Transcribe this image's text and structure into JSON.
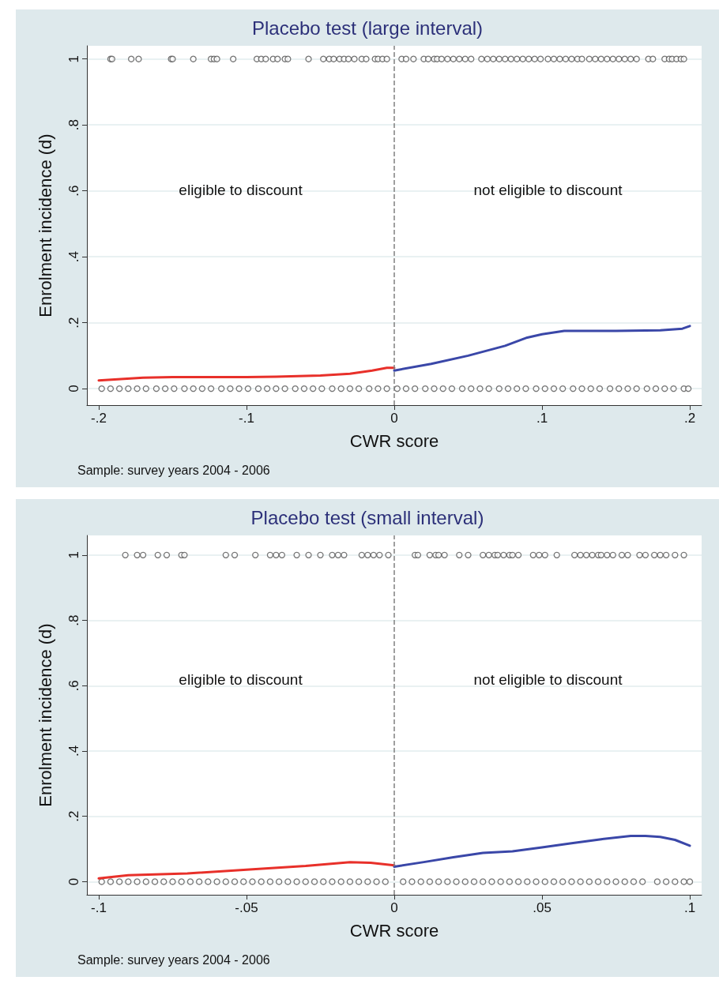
{
  "chart_data": [
    {
      "type": "scatter",
      "title": "Placebo test (large interval)",
      "xlabel": "CWR score",
      "ylabel": "Enrolment incidence (d)",
      "xlim": [
        -0.208,
        0.208
      ],
      "xticks": [
        {
          "value": -0.2,
          "label": "-.2"
        },
        {
          "value": -0.1,
          "label": "-.1"
        },
        {
          "value": 0,
          "label": "0"
        },
        {
          "value": 0.1,
          "label": ".1"
        },
        {
          "value": 0.2,
          "label": ".2"
        }
      ],
      "ylim": [
        -0.05,
        1.04
      ],
      "yticks": [
        {
          "value": 0,
          "label": "0"
        },
        {
          "value": 0.2,
          "label": ".2"
        },
        {
          "value": 0.4,
          "label": ".4"
        },
        {
          "value": 0.6,
          "label": ".6"
        },
        {
          "value": 0.8,
          "label": ".8"
        },
        {
          "value": 1,
          "label": "1"
        }
      ],
      "grid": "y",
      "ref_lines": [
        {
          "axis": "x",
          "value": 0,
          "color": "#808080",
          "line_style": "dashed"
        }
      ],
      "annotations": [
        "eligible to discount",
        "not eligible to discount",
        "Sample: survey years 2004 - 2006"
      ],
      "series": [
        {
          "type": "scatter",
          "marker": "circle",
          "color": "#555555",
          "x": [
            -0.192,
            -0.191,
            -0.178,
            -0.173,
            -0.151,
            -0.15,
            -0.136,
            -0.124,
            -0.122,
            -0.12,
            -0.109,
            -0.093,
            -0.09,
            -0.087,
            -0.082,
            -0.079,
            -0.074,
            -0.072,
            -0.058,
            -0.048,
            -0.044,
            -0.041,
            -0.037,
            -0.034,
            -0.031,
            -0.027,
            -0.022,
            -0.019,
            -0.013,
            -0.011,
            -0.008,
            -0.005,
            0.005,
            0.008,
            0.013,
            0.02,
            0.023,
            0.027,
            0.029,
            0.032,
            0.036,
            0.04,
            0.044,
            0.048,
            0.052,
            0.059,
            0.063,
            0.067,
            0.071,
            0.075,
            0.079,
            0.083,
            0.087,
            0.091,
            0.095,
            0.099,
            0.104,
            0.108,
            0.112,
            0.116,
            0.12,
            0.124,
            0.127,
            0.132,
            0.136,
            0.14,
            0.144,
            0.148,
            0.152,
            0.156,
            0.16,
            0.164,
            0.172,
            0.175,
            0.183,
            0.186,
            0.188,
            0.191,
            0.194,
            0.196
          ],
          "values": [
            1,
            1,
            1,
            1,
            1,
            1,
            1,
            1,
            1,
            1,
            1,
            1,
            1,
            1,
            1,
            1,
            1,
            1,
            1,
            1,
            1,
            1,
            1,
            1,
            1,
            1,
            1,
            1,
            1,
            1,
            1,
            1,
            1,
            1,
            1,
            1,
            1,
            1,
            1,
            1,
            1,
            1,
            1,
            1,
            1,
            1,
            1,
            1,
            1,
            1,
            1,
            1,
            1,
            1,
            1,
            1,
            1,
            1,
            1,
            1,
            1,
            1,
            1,
            1,
            1,
            1,
            1,
            1,
            1,
            1,
            1,
            1,
            1,
            1,
            1,
            1,
            1,
            1,
            1,
            1
          ]
        },
        {
          "type": "scatter",
          "marker": "circle",
          "color": "#555555",
          "x": [
            -0.198,
            -0.192,
            -0.186,
            -0.18,
            -0.174,
            -0.168,
            -0.161,
            -0.155,
            -0.149,
            -0.142,
            -0.136,
            -0.13,
            -0.124,
            -0.117,
            -0.111,
            -0.105,
            -0.099,
            -0.092,
            -0.086,
            -0.08,
            -0.074,
            -0.067,
            -0.061,
            -0.055,
            -0.049,
            -0.042,
            -0.036,
            -0.03,
            -0.024,
            -0.017,
            -0.011,
            -0.005,
            0.002,
            0.008,
            0.014,
            0.021,
            0.027,
            0.033,
            0.039,
            0.046,
            0.052,
            0.058,
            0.064,
            0.071,
            0.077,
            0.083,
            0.089,
            0.096,
            0.102,
            0.108,
            0.114,
            0.121,
            0.127,
            0.133,
            0.139,
            0.146,
            0.152,
            0.158,
            0.164,
            0.171,
            0.177,
            0.183,
            0.189,
            0.196,
            0.199
          ],
          "values": [
            0,
            0,
            0,
            0,
            0,
            0,
            0,
            0,
            0,
            0,
            0,
            0,
            0,
            0,
            0,
            0,
            0,
            0,
            0,
            0,
            0,
            0,
            0,
            0,
            0,
            0,
            0,
            0,
            0,
            0,
            0,
            0,
            0,
            0,
            0,
            0,
            0,
            0,
            0,
            0,
            0,
            0,
            0,
            0,
            0,
            0,
            0,
            0,
            0,
            0,
            0,
            0,
            0,
            0,
            0,
            0,
            0,
            0,
            0,
            0,
            0,
            0,
            0,
            0,
            0
          ]
        },
        {
          "type": "line",
          "marker": "none",
          "color": "#e8302a",
          "x": [
            -0.2,
            -0.17,
            -0.15,
            -0.1,
            -0.08,
            -0.05,
            -0.03,
            -0.015,
            -0.005,
            0
          ],
          "values": [
            0.025,
            0.033,
            0.035,
            0.035,
            0.036,
            0.04,
            0.045,
            0.055,
            0.063,
            0.063
          ]
        },
        {
          "type": "line",
          "marker": "none",
          "color": "#3a47a8",
          "x": [
            0,
            0.025,
            0.05,
            0.075,
            0.09,
            0.1,
            0.115,
            0.15,
            0.18,
            0.195,
            0.2
          ],
          "values": [
            0.055,
            0.075,
            0.1,
            0.13,
            0.155,
            0.165,
            0.175,
            0.175,
            0.177,
            0.182,
            0.19
          ]
        }
      ]
    },
    {
      "type": "scatter",
      "title": "Placebo test (small interval)",
      "xlabel": "CWR score",
      "ylabel": "Enrolment incidence (d)",
      "xlim": [
        -0.104,
        0.104
      ],
      "xticks": [
        {
          "value": -0.1,
          "label": "-.1"
        },
        {
          "value": -0.05,
          "label": "-.05"
        },
        {
          "value": 0,
          "label": "0"
        },
        {
          "value": 0.05,
          "label": ".05"
        },
        {
          "value": 0.1,
          "label": ".1"
        }
      ],
      "ylim": [
        -0.04,
        1.06
      ],
      "yticks": [
        {
          "value": 0,
          "label": "0"
        },
        {
          "value": 0.2,
          "label": ".2"
        },
        {
          "value": 0.4,
          "label": ".4"
        },
        {
          "value": 0.6,
          "label": ".6"
        },
        {
          "value": 0.8,
          "label": ".8"
        },
        {
          "value": 1,
          "label": "1"
        }
      ],
      "grid": "y",
      "ref_lines": [
        {
          "axis": "x",
          "value": 0,
          "color": "#808080",
          "line_style": "dashed"
        }
      ],
      "annotations": [
        "eligible to discount",
        "not eligible to discount",
        "Sample: survey years 2004 - 2006"
      ],
      "series": [
        {
          "type": "scatter",
          "marker": "circle",
          "color": "#555555",
          "x": [
            -0.091,
            -0.087,
            -0.085,
            -0.08,
            -0.077,
            -0.072,
            -0.071,
            -0.057,
            -0.054,
            -0.047,
            -0.042,
            -0.04,
            -0.038,
            -0.033,
            -0.029,
            -0.025,
            -0.021,
            -0.019,
            -0.017,
            -0.011,
            -0.009,
            -0.007,
            -0.005,
            -0.002,
            0.007,
            0.008,
            0.012,
            0.014,
            0.015,
            0.017,
            0.022,
            0.025,
            0.03,
            0.032,
            0.034,
            0.035,
            0.037,
            0.039,
            0.04,
            0.042,
            0.047,
            0.049,
            0.051,
            0.055,
            0.061,
            0.063,
            0.065,
            0.067,
            0.069,
            0.07,
            0.072,
            0.074,
            0.077,
            0.079,
            0.083,
            0.085,
            0.088,
            0.09,
            0.092,
            0.095,
            0.098
          ],
          "values": [
            1,
            1,
            1,
            1,
            1,
            1,
            1,
            1,
            1,
            1,
            1,
            1,
            1,
            1,
            1,
            1,
            1,
            1,
            1,
            1,
            1,
            1,
            1,
            1,
            1,
            1,
            1,
            1,
            1,
            1,
            1,
            1,
            1,
            1,
            1,
            1,
            1,
            1,
            1,
            1,
            1,
            1,
            1,
            1,
            1,
            1,
            1,
            1,
            1,
            1,
            1,
            1,
            1,
            1,
            1,
            1,
            1,
            1,
            1,
            1,
            1
          ]
        },
        {
          "type": "scatter",
          "marker": "circle",
          "color": "#555555",
          "x": [
            -0.099,
            -0.096,
            -0.093,
            -0.09,
            -0.087,
            -0.084,
            -0.081,
            -0.078,
            -0.075,
            -0.072,
            -0.069,
            -0.066,
            -0.063,
            -0.06,
            -0.057,
            -0.054,
            -0.051,
            -0.048,
            -0.045,
            -0.042,
            -0.039,
            -0.036,
            -0.033,
            -0.03,
            -0.027,
            -0.024,
            -0.021,
            -0.018,
            -0.015,
            -0.012,
            -0.009,
            -0.006,
            -0.003,
            0.003,
            0.006,
            0.009,
            0.012,
            0.015,
            0.018,
            0.021,
            0.024,
            0.027,
            0.03,
            0.033,
            0.036,
            0.039,
            0.042,
            0.045,
            0.048,
            0.051,
            0.054,
            0.057,
            0.06,
            0.063,
            0.066,
            0.069,
            0.072,
            0.075,
            0.078,
            0.081,
            0.084,
            0.089,
            0.092,
            0.095,
            0.098,
            0.1
          ],
          "values": [
            0,
            0,
            0,
            0,
            0,
            0,
            0,
            0,
            0,
            0,
            0,
            0,
            0,
            0,
            0,
            0,
            0,
            0,
            0,
            0,
            0,
            0,
            0,
            0,
            0,
            0,
            0,
            0,
            0,
            0,
            0,
            0,
            0,
            0,
            0,
            0,
            0,
            0,
            0,
            0,
            0,
            0,
            0,
            0,
            0,
            0,
            0,
            0,
            0,
            0,
            0,
            0,
            0,
            0,
            0,
            0,
            0,
            0,
            0,
            0,
            0,
            0,
            0,
            0,
            0,
            0
          ]
        },
        {
          "type": "line",
          "marker": "none",
          "color": "#e8302a",
          "x": [
            -0.1,
            -0.09,
            -0.07,
            -0.05,
            -0.03,
            -0.015,
            -0.008,
            0
          ],
          "values": [
            0.01,
            0.02,
            0.025,
            0.037,
            0.048,
            0.06,
            0.058,
            0.05
          ]
        },
        {
          "type": "line",
          "marker": "none",
          "color": "#3a47a8",
          "x": [
            0,
            0.01,
            0.02,
            0.03,
            0.04,
            0.05,
            0.06,
            0.07,
            0.08,
            0.085,
            0.09,
            0.095,
            0.1
          ],
          "values": [
            0.046,
            0.06,
            0.075,
            0.088,
            0.093,
            0.105,
            0.118,
            0.13,
            0.14,
            0.14,
            0.137,
            0.128,
            0.11
          ]
        }
      ]
    }
  ]
}
